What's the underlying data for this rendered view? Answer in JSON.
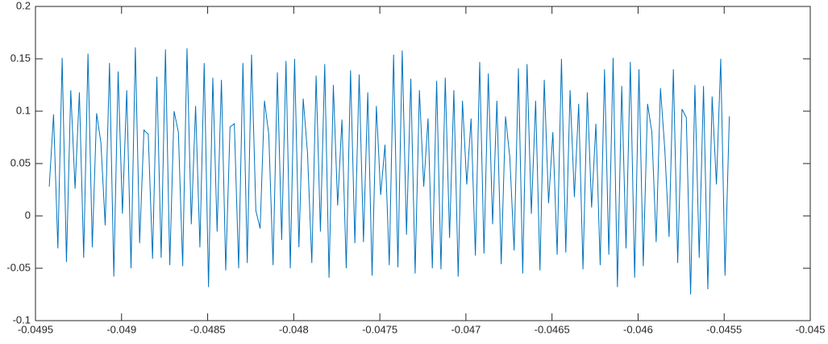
{
  "chart_data": {
    "type": "line",
    "x": [
      -0.04942,
      -0.049395,
      -0.04937,
      -0.049345,
      -0.04932,
      -0.049295,
      -0.04927,
      -0.049245,
      -0.04922,
      -0.049195,
      -0.04917,
      -0.049145,
      -0.04912,
      -0.049095,
      -0.04907,
      -0.049045,
      -0.04902,
      -0.048995,
      -0.04897,
      -0.048945,
      -0.04892,
      -0.048895,
      -0.04887,
      -0.048845,
      -0.04882,
      -0.048795,
      -0.04877,
      -0.048745,
      -0.04872,
      -0.048695,
      -0.04867,
      -0.048645,
      -0.04862,
      -0.048595,
      -0.04857,
      -0.048545,
      -0.04852,
      -0.048495,
      -0.04847,
      -0.048445,
      -0.04842,
      -0.048395,
      -0.04837,
      -0.048345,
      -0.04832,
      -0.048295,
      -0.04827,
      -0.048245,
      -0.04822,
      -0.048195,
      -0.04817,
      -0.048145,
      -0.04812,
      -0.048095,
      -0.04807,
      -0.048045,
      -0.04802,
      -0.047995,
      -0.04797,
      -0.047945,
      -0.04792,
      -0.047895,
      -0.04787,
      -0.047845,
      -0.04782,
      -0.047795,
      -0.04777,
      -0.047745,
      -0.04772,
      -0.047695,
      -0.04767,
      -0.047645,
      -0.04762,
      -0.047595,
      -0.04757,
      -0.047545,
      -0.04752,
      -0.047495,
      -0.04747,
      -0.047445,
      -0.04742,
      -0.047395,
      -0.04737,
      -0.047345,
      -0.04732,
      -0.047295,
      -0.04727,
      -0.047245,
      -0.04722,
      -0.047195,
      -0.04717,
      -0.047145,
      -0.04712,
      -0.047095,
      -0.04707,
      -0.047045,
      -0.04702,
      -0.046995,
      -0.04697,
      -0.046945,
      -0.04692,
      -0.046895,
      -0.04687,
      -0.046845,
      -0.04682,
      -0.046795,
      -0.04677,
      -0.046745,
      -0.04672,
      -0.046695,
      -0.04667,
      -0.046645,
      -0.04662,
      -0.046595,
      -0.04657,
      -0.046545,
      -0.04652,
      -0.046495,
      -0.04647,
      -0.046445,
      -0.04642,
      -0.046395,
      -0.04637,
      -0.046345,
      -0.04632,
      -0.046295,
      -0.04627,
      -0.046245,
      -0.04622,
      -0.046195,
      -0.04617,
      -0.046145,
      -0.04612,
      -0.046095,
      -0.04607,
      -0.046045,
      -0.04602,
      -0.045995,
      -0.04597,
      -0.045945,
      -0.04592,
      -0.045895,
      -0.04587,
      -0.045845,
      -0.04582,
      -0.045795,
      -0.04577,
      -0.045745,
      -0.04572,
      -0.045695,
      -0.04567,
      -0.045645,
      -0.04562,
      -0.045595,
      -0.04557,
      -0.045545,
      -0.04552,
      -0.045495,
      -0.04547
    ],
    "series": [
      {
        "color": "#0072bd",
        "values": [
          0.028,
          0.097,
          -0.031,
          0.151,
          -0.044,
          0.12,
          0.026,
          0.118,
          -0.04,
          0.155,
          -0.03,
          0.098,
          0.07,
          -0.009,
          0.146,
          -0.058,
          0.138,
          0.002,
          0.12,
          -0.05,
          0.161,
          -0.026,
          0.082,
          0.078,
          -0.041,
          0.133,
          -0.04,
          0.159,
          -0.047,
          0.1,
          0.08,
          -0.048,
          0.16,
          -0.008,
          0.105,
          -0.03,
          0.146,
          -0.068,
          0.132,
          -0.015,
          0.13,
          -0.052,
          0.085,
          0.088,
          -0.05,
          0.146,
          -0.045,
          0.154,
          0.005,
          -0.012,
          0.11,
          0.078,
          -0.047,
          0.137,
          -0.023,
          0.148,
          -0.05,
          0.15,
          -0.03,
          0.112,
          0.06,
          -0.045,
          0.134,
          -0.015,
          0.145,
          -0.059,
          0.125,
          0.01,
          0.092,
          -0.05,
          0.139,
          -0.026,
          0.135,
          -0.025,
          0.118,
          -0.057,
          0.105,
          0.02,
          0.068,
          -0.047,
          0.154,
          -0.049,
          0.158,
          -0.018,
          0.131,
          -0.055,
          0.12,
          0.028,
          0.093,
          -0.05,
          0.129,
          -0.051,
          0.132,
          -0.021,
          0.12,
          -0.058,
          0.11,
          0.03,
          0.093,
          -0.038,
          0.147,
          -0.036,
          0.136,
          -0.008,
          0.11,
          -0.046,
          0.095,
          0.056,
          -0.033,
          0.141,
          -0.055,
          0.145,
          0.002,
          0.11,
          -0.052,
          0.13,
          0.012,
          0.08,
          -0.037,
          0.15,
          -0.035,
          0.12,
          0.018,
          0.107,
          -0.051,
          0.118,
          0.008,
          0.088,
          -0.047,
          0.14,
          -0.037,
          0.151,
          -0.068,
          0.124,
          -0.031,
          0.147,
          -0.059,
          0.14,
          -0.048,
          0.107,
          0.08,
          -0.025,
          0.122,
          0.064,
          -0.02,
          0.14,
          -0.045,
          0.102,
          0.094,
          -0.075,
          0.125,
          -0.04,
          0.124,
          -0.07,
          0.114,
          0.03,
          0.15,
          -0.057,
          0.095
        ]
      }
    ],
    "xlim": [
      -0.0495,
      -0.045
    ],
    "xticks": [
      -0.0495,
      -0.049,
      -0.0485,
      -0.048,
      -0.0475,
      -0.047,
      -0.0465,
      -0.046,
      -0.0455,
      -0.045
    ],
    "ylim": [
      -0.1,
      0.2
    ],
    "yticks": [
      -0.1,
      -0.05,
      0,
      0.05,
      0.1,
      0.15,
      0.2
    ],
    "grid": false
  }
}
